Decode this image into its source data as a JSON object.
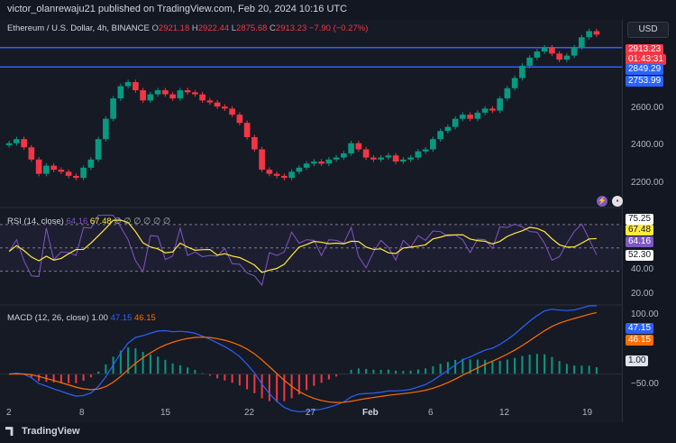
{
  "header": {
    "published_text": "victor_olanrewaju21 published on TradingView.com, Feb 20, 2024 10:16 UTC"
  },
  "legend": {
    "symbol": "Ethereum / U.S. Dollar, 4h, BINANCE",
    "o_label": "O",
    "o": "2921.18",
    "h_label": "H",
    "h": "2922.44",
    "l_label": "L",
    "l": "2875.68",
    "c_label": "C",
    "c": "2913.23",
    "change": "−7.90 (−0.27%)"
  },
  "currency_button": "USD",
  "price_axis": {
    "ticks": [
      "2600.00",
      "2400.00",
      "2200.00"
    ],
    "tags": {
      "last_price": "2913.23",
      "countdown": "01:43:31",
      "level_high": "2849.29",
      "level_low": "2753.99"
    }
  },
  "rsi": {
    "title": "RSI (14, close)",
    "value1": "64.16",
    "value2": "67.48",
    "placeholders": "∅ ∅ ∅ ∅ ∅ ∅",
    "axis_ticks": [
      "75.25",
      "67.48",
      "64.16",
      "52.30",
      "40.00",
      "20.00"
    ]
  },
  "macd": {
    "title": "MACD (12, 26, close)",
    "hist": "1.00",
    "macd": "47.15",
    "signal": "46.15",
    "axis_ticks": [
      "100.00",
      "47.15",
      "46.15",
      "1.00",
      "−50.00"
    ]
  },
  "time_axis": [
    "2",
    "8",
    "15",
    "22",
    "27",
    "Feb",
    "6",
    "12",
    "19"
  ],
  "footer": {
    "brand": "TradingView"
  },
  "colors": {
    "bg": "#161a25",
    "up": "#089981",
    "down": "#f23645",
    "level": "#2962ff",
    "rsi": "#7e57c2",
    "rsi_ma": "#ffeb3b",
    "macd": "#2962ff",
    "signal": "#ff6d00"
  },
  "chart_data": {
    "type": "candlestick",
    "timeframe": "4h",
    "close_series": [
      2380,
      2400,
      2360,
      2300,
      2230,
      2270,
      2250,
      2240,
      2220,
      2210,
      2260,
      2300,
      2400,
      2500,
      2600,
      2660,
      2680,
      2640,
      2590,
      2620,
      2640,
      2620,
      2600,
      2640,
      2630,
      2620,
      2590,
      2580,
      2560,
      2550,
      2520,
      2480,
      2410,
      2350,
      2250,
      2230,
      2220,
      2210,
      2240,
      2260,
      2280,
      2290,
      2280,
      2300,
      2310,
      2330,
      2380,
      2350,
      2310,
      2300,
      2310,
      2320,
      2290,
      2300,
      2310,
      2340,
      2350,
      2400,
      2440,
      2460,
      2500,
      2520,
      2500,
      2530,
      2550,
      2540,
      2600,
      2650,
      2700,
      2760,
      2800,
      2830,
      2850,
      2820,
      2790,
      2810,
      2850,
      2900,
      2930,
      2913
    ],
    "horizontal_levels": [
      2849.29,
      2753.99
    ],
    "ylim": [
      2100,
      2950
    ],
    "rsi_range": [
      15,
      80
    ],
    "macd_range": [
      -65,
      110
    ]
  }
}
